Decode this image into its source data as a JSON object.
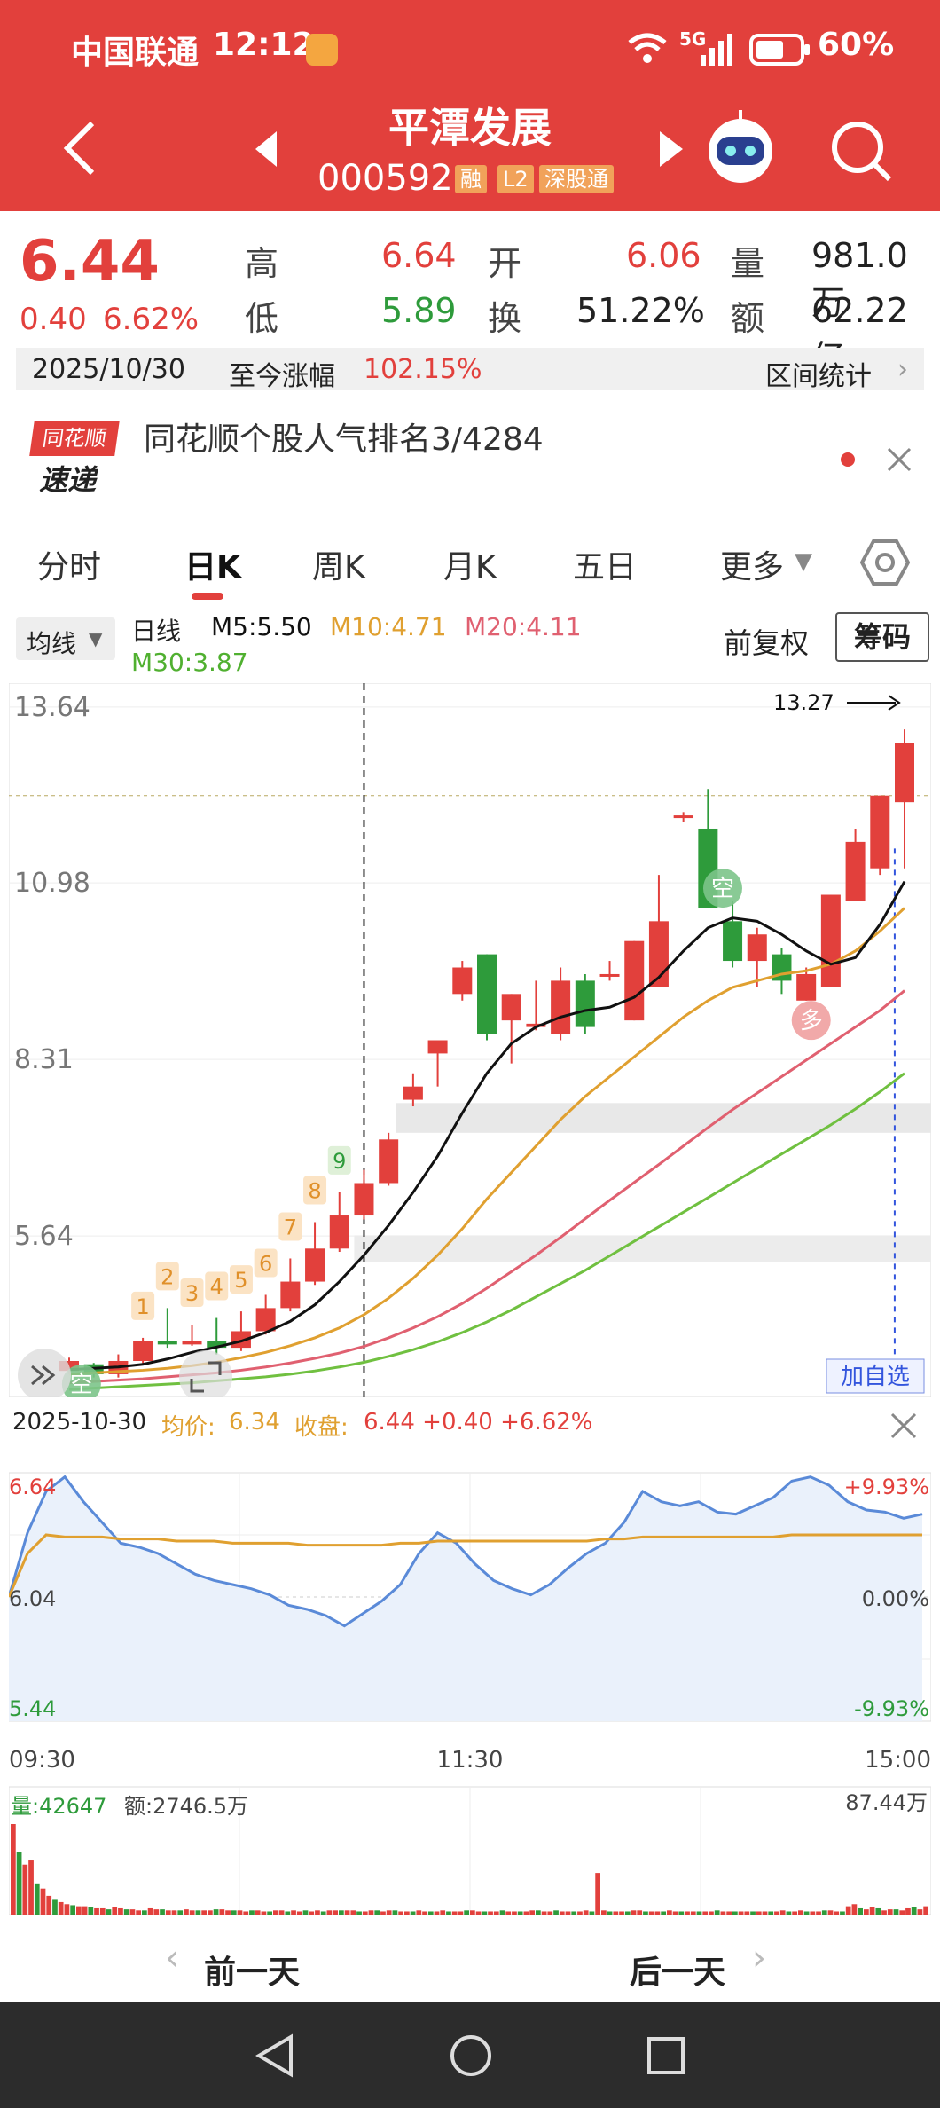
{
  "status_bar": {
    "carrier": "中国联通",
    "time": "12:12",
    "network": "5G",
    "battery": "60%"
  },
  "header": {
    "title": "平潭发展",
    "code": "000592",
    "tags": [
      "融",
      "L2",
      "深股通"
    ]
  },
  "quote": {
    "price": "6.44",
    "change": "0.40",
    "change_pct": "6.62%",
    "high_label": "高",
    "high": "6.64",
    "open_label": "开",
    "open": "6.06",
    "volume_label": "量",
    "volume": "981.0万",
    "low_label": "低",
    "low": "5.89",
    "turnover_label": "换",
    "turnover": "51.22%",
    "amount_label": "额",
    "amount": "62.22亿"
  },
  "range_bar": {
    "date": "2025/10/30",
    "label": "至今涨幅",
    "value": "102.15%",
    "stats": "区间统计"
  },
  "news": {
    "logo_top": "同花顺",
    "logo_bottom": "速递",
    "text": "同花顺个股人气排名3/4284"
  },
  "tabs": [
    "分时",
    "日K",
    "周K",
    "月K",
    "五日",
    "更多"
  ],
  "ma_bar": {
    "selector": "均线",
    "period": "日线",
    "m5": "M5:5.50",
    "m10": "M10:4.71",
    "m20": "M20:4.11",
    "m30": "M30:3.87",
    "fq": "前复权",
    "chips": "筹码",
    "colors": {
      "m5": "#111111",
      "m10": "#e0a030",
      "m20": "#e06070",
      "m30": "#70c040"
    }
  },
  "chart_data": [
    {
      "type": "candlestick",
      "y_ticks": [
        "13.64",
        "10.98",
        "8.31",
        "5.64"
      ],
      "ylim": [
        3.2,
        14.0
      ],
      "annotation": "13.27",
      "add_watch": "加自选",
      "badges": [
        "1",
        "2",
        "3",
        "4",
        "5",
        "6",
        "7",
        "8",
        "9"
      ],
      "signal_labels": [
        "空",
        "空",
        "多"
      ],
      "candles": [
        [
          3.6,
          3.75,
          3.55,
          3.8
        ],
        [
          3.7,
          3.55,
          3.5,
          3.72
        ],
        [
          3.55,
          3.75,
          3.5,
          3.85
        ],
        [
          3.75,
          4.05,
          3.7,
          4.1
        ],
        [
          4.05,
          4.0,
          3.95,
          4.55
        ],
        [
          4.0,
          4.05,
          3.98,
          4.3
        ],
        [
          4.05,
          3.95,
          3.85,
          4.4
        ],
        [
          3.95,
          4.2,
          3.9,
          4.5
        ],
        [
          4.2,
          4.55,
          4.15,
          4.75
        ],
        [
          4.55,
          4.95,
          4.5,
          5.3
        ],
        [
          4.95,
          5.45,
          4.9,
          5.85
        ],
        [
          5.45,
          5.95,
          5.4,
          6.3
        ],
        [
          5.95,
          6.44,
          5.89,
          6.64
        ],
        [
          6.44,
          7.1,
          6.4,
          7.2
        ],
        [
          7.7,
          7.9,
          7.6,
          8.1
        ],
        [
          8.4,
          8.6,
          7.9,
          8.6
        ],
        [
          9.3,
          9.7,
          9.2,
          9.8
        ],
        [
          9.9,
          8.7,
          8.6,
          9.9
        ],
        [
          8.9,
          9.3,
          8.25,
          9.3
        ],
        [
          8.8,
          8.85,
          8.75,
          9.5
        ],
        [
          8.7,
          9.5,
          8.6,
          9.7
        ],
        [
          9.5,
          8.8,
          8.7,
          9.6
        ],
        [
          9.6,
          9.6,
          9.5,
          9.8
        ],
        [
          8.9,
          10.1,
          8.9,
          10.1
        ],
        [
          9.4,
          10.4,
          9.4,
          11.1
        ],
        [
          12.0,
          12.0,
          11.9,
          12.05
        ],
        [
          11.8,
          10.6,
          10.6,
          12.4
        ],
        [
          10.4,
          9.8,
          9.7,
          10.7
        ],
        [
          9.8,
          10.2,
          9.4,
          10.3
        ],
        [
          9.9,
          9.5,
          9.3,
          10.0
        ],
        [
          9.2,
          9.6,
          9.2,
          9.7
        ],
        [
          9.4,
          10.8,
          9.4,
          10.8
        ],
        [
          10.7,
          11.6,
          10.7,
          11.8
        ],
        [
          11.2,
          12.3,
          11.1,
          12.3
        ],
        [
          12.2,
          13.1,
          11.2,
          13.3
        ]
      ],
      "m5": [
        3.62,
        3.64,
        3.66,
        3.7,
        3.78,
        3.88,
        3.96,
        4.05,
        4.18,
        4.35,
        4.6,
        4.95,
        5.35,
        5.8,
        6.3,
        6.85,
        7.5,
        8.1,
        8.55,
        8.8,
        8.95,
        9.05,
        9.1,
        9.25,
        9.55,
        9.95,
        10.3,
        10.45,
        10.4,
        10.2,
        9.95,
        9.75,
        9.85,
        10.35,
        11.0
      ],
      "m10": [
        3.55,
        3.57,
        3.59,
        3.61,
        3.64,
        3.68,
        3.73,
        3.8,
        3.88,
        3.98,
        4.1,
        4.25,
        4.45,
        4.7,
        5.0,
        5.35,
        5.75,
        6.2,
        6.6,
        7.0,
        7.4,
        7.75,
        8.05,
        8.35,
        8.65,
        8.95,
        9.2,
        9.4,
        9.5,
        9.6,
        9.65,
        9.75,
        9.95,
        10.25,
        10.6
      ],
      "m20": [
        3.42,
        3.44,
        3.46,
        3.48,
        3.51,
        3.54,
        3.57,
        3.61,
        3.66,
        3.72,
        3.79,
        3.87,
        3.97,
        4.1,
        4.25,
        4.42,
        4.62,
        4.85,
        5.1,
        5.35,
        5.62,
        5.9,
        6.18,
        6.45,
        6.72,
        7.0,
        7.28,
        7.55,
        7.8,
        8.05,
        8.3,
        8.55,
        8.8,
        9.05,
        9.35
      ],
      "m30": [
        3.32,
        3.34,
        3.36,
        3.38,
        3.4,
        3.42,
        3.45,
        3.48,
        3.51,
        3.55,
        3.6,
        3.66,
        3.73,
        3.82,
        3.92,
        4.04,
        4.18,
        4.34,
        4.52,
        4.72,
        4.92,
        5.12,
        5.34,
        5.56,
        5.78,
        6.0,
        6.22,
        6.44,
        6.66,
        6.88,
        7.1,
        7.32,
        7.56,
        7.82,
        8.1
      ]
    },
    {
      "type": "line",
      "date": "2025-10-30",
      "avg_label": "均价:",
      "avg": "6.34",
      "close_label": "收盘:",
      "close": "6.44 +0.40 +6.62%",
      "y_left": [
        "6.64",
        "6.04",
        "5.44"
      ],
      "y_right": [
        "+9.93%",
        "0.00%",
        "-9.93%"
      ],
      "x_labels": [
        "09:30",
        "11:30",
        "15:00"
      ],
      "ylim": [
        5.44,
        6.64
      ],
      "price": [
        6.04,
        6.35,
        6.55,
        6.62,
        6.5,
        6.4,
        6.3,
        6.28,
        6.25,
        6.2,
        6.15,
        6.12,
        6.1,
        6.08,
        6.05,
        6.0,
        5.98,
        5.95,
        5.9,
        5.96,
        6.02,
        6.1,
        6.25,
        6.35,
        6.3,
        6.2,
        6.12,
        6.08,
        6.05,
        6.1,
        6.18,
        6.25,
        6.3,
        6.4,
        6.55,
        6.5,
        6.48,
        6.5,
        6.45,
        6.44,
        6.48,
        6.52,
        6.6,
        6.62,
        6.58,
        6.5,
        6.46,
        6.45,
        6.42,
        6.44
      ],
      "avg_series": [
        6.04,
        6.25,
        6.34,
        6.33,
        6.33,
        6.33,
        6.32,
        6.32,
        6.32,
        6.31,
        6.31,
        6.31,
        6.3,
        6.3,
        6.3,
        6.3,
        6.29,
        6.29,
        6.29,
        6.29,
        6.29,
        6.3,
        6.3,
        6.31,
        6.31,
        6.31,
        6.31,
        6.31,
        6.31,
        6.31,
        6.31,
        6.31,
        6.32,
        6.32,
        6.33,
        6.33,
        6.33,
        6.33,
        6.33,
        6.33,
        6.33,
        6.33,
        6.34,
        6.34,
        6.34,
        6.34,
        6.34,
        6.34,
        6.34,
        6.34
      ]
    },
    {
      "type": "bar",
      "label": "量:42647",
      "amount": "额:2746.5万",
      "max": "87.44万",
      "values": [
        87,
        60,
        48,
        52,
        30,
        25,
        18,
        15,
        12,
        10,
        9,
        8,
        8,
        7,
        6,
        6,
        5,
        7,
        6,
        5,
        5,
        4,
        4,
        6,
        5,
        5,
        4,
        4,
        4,
        5,
        4,
        4,
        4,
        4,
        5,
        5,
        4,
        4,
        4,
        3,
        4,
        4,
        3,
        3,
        4,
        4,
        3,
        4,
        3,
        4,
        3,
        4,
        3,
        4,
        4,
        4,
        4,
        4,
        3,
        3,
        4,
        4,
        3,
        4,
        4,
        3,
        3,
        3,
        4,
        3,
        3,
        3,
        4,
        3,
        3,
        3,
        4,
        4,
        3,
        3,
        3,
        3,
        4,
        3,
        3,
        3,
        3,
        4,
        4,
        3,
        3,
        4,
        3,
        3,
        3,
        3,
        4,
        3,
        40,
        4,
        3,
        3,
        3,
        3,
        4,
        4,
        3,
        3,
        3,
        3,
        4,
        3,
        3,
        3,
        3,
        3,
        3,
        3,
        4,
        3,
        3,
        3,
        3,
        3,
        3,
        3,
        3,
        3,
        3,
        4,
        3,
        3,
        4,
        3,
        3,
        3,
        4,
        4,
        3,
        3,
        8,
        10,
        6,
        5,
        7,
        6,
        4,
        5,
        5,
        4,
        6,
        7,
        5,
        8
      ]
    }
  ],
  "nav": {
    "prev": "前一天",
    "next": "后一天"
  }
}
